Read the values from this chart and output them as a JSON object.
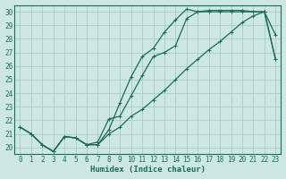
{
  "xlabel": "Humidex (Indice chaleur)",
  "bg_color": "#cce8e0",
  "grid_color": "#aaccc4",
  "line_color": "#1a6b5a",
  "xlim": [
    -0.5,
    23.5
  ],
  "ylim": [
    19.5,
    30.5
  ],
  "xticks": [
    0,
    1,
    2,
    3,
    4,
    5,
    6,
    7,
    8,
    9,
    10,
    11,
    12,
    13,
    14,
    15,
    16,
    17,
    18,
    19,
    20,
    21,
    22,
    23
  ],
  "yticks": [
    20,
    21,
    22,
    23,
    24,
    25,
    26,
    27,
    28,
    29,
    30
  ],
  "line1_x": [
    0,
    1,
    2,
    3,
    4,
    5,
    6,
    7,
    8,
    9,
    10,
    11,
    12,
    13,
    14,
    15,
    16,
    17,
    18,
    19,
    20,
    21,
    22,
    23
  ],
  "line1_y": [
    21.5,
    21.0,
    20.2,
    19.7,
    20.8,
    20.7,
    20.2,
    20.2,
    21.3,
    23.3,
    25.2,
    26.7,
    27.3,
    28.5,
    29.4,
    30.2,
    30.0,
    30.1,
    30.1,
    30.1,
    30.1,
    30.0,
    30.0,
    28.3
  ],
  "line2_x": [
    0,
    1,
    2,
    3,
    4,
    5,
    6,
    7,
    8,
    9,
    10,
    11,
    12,
    13,
    14,
    15,
    16,
    17,
    18,
    19,
    20,
    21,
    22,
    23
  ],
  "line2_y": [
    21.5,
    21.0,
    20.2,
    19.7,
    20.8,
    20.7,
    20.2,
    20.4,
    22.1,
    22.3,
    23.8,
    25.3,
    26.7,
    27.0,
    27.5,
    29.5,
    30.0,
    30.0,
    30.0,
    30.0,
    30.0,
    30.0,
    30.0,
    26.5
  ],
  "line3_x": [
    0,
    1,
    2,
    3,
    4,
    5,
    6,
    7,
    8,
    9,
    10,
    11,
    12,
    13,
    14,
    15,
    16,
    17,
    18,
    19,
    20,
    21,
    22,
    23
  ],
  "line3_y": [
    21.5,
    21.0,
    20.2,
    19.7,
    20.8,
    20.7,
    20.2,
    20.2,
    21.0,
    21.5,
    22.3,
    22.8,
    23.5,
    24.2,
    25.0,
    25.8,
    26.5,
    27.2,
    27.8,
    28.5,
    29.2,
    29.7,
    30.0,
    26.5
  ],
  "markersize": 3,
  "linewidth": 0.9
}
